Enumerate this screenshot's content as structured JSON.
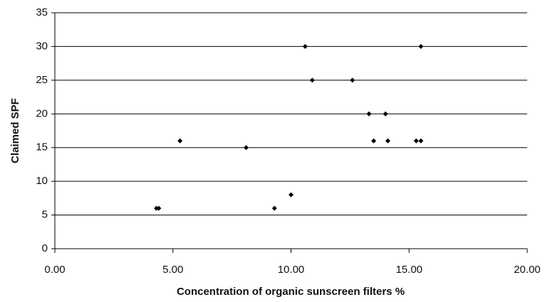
{
  "chart_data": {
    "type": "scatter",
    "x_label": "Concentration of organic sunscreen filters %",
    "y_label": "Claimed SPF",
    "x": [
      4.3,
      4.4,
      5.3,
      8.1,
      9.3,
      10.0,
      10.6,
      10.9,
      12.6,
      13.3,
      13.5,
      14.0,
      14.1,
      15.3,
      15.5,
      15.5
    ],
    "values": [
      6,
      6,
      16,
      15,
      6,
      8,
      30,
      25,
      25,
      20,
      16,
      20,
      16,
      16,
      16,
      30
    ],
    "color": "#000000",
    "xlim": [
      0,
      20
    ],
    "xticks": [
      {
        "value": 0,
        "label": "0.00"
      },
      {
        "value": 5,
        "label": "5.00"
      },
      {
        "value": 10,
        "label": "10.00"
      },
      {
        "value": 15,
        "label": "15.00"
      },
      {
        "value": 20,
        "label": "20.00"
      }
    ],
    "ylim": [
      0,
      35
    ],
    "yticks": [
      0,
      5,
      10,
      15,
      20,
      25,
      30,
      35
    ],
    "grid": true
  }
}
